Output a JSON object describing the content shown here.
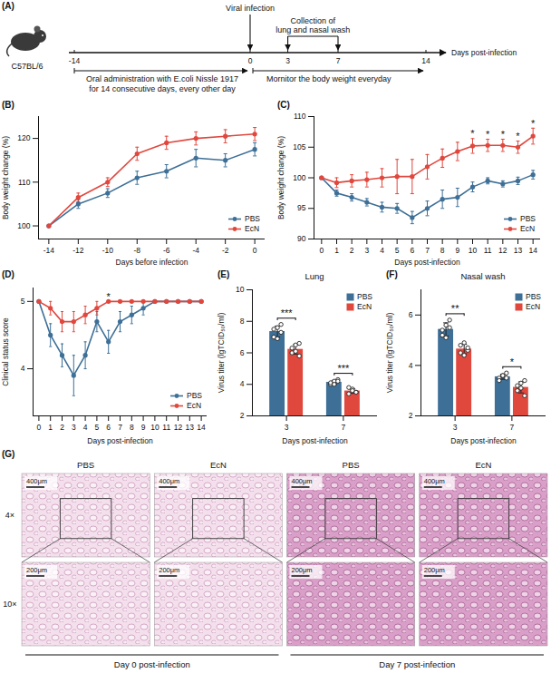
{
  "diagram": {
    "panel": "(A)",
    "strain": "C57BL/6",
    "axis_label": "Days post-infection",
    "ticks": [
      -14,
      0,
      3,
      7,
      14
    ],
    "events": [
      {
        "days": [
          0
        ],
        "label": [
          "Viral infection"
        ]
      },
      {
        "days": [
          3,
          7
        ],
        "label": [
          "Collection of",
          "lung and nasal wash"
        ]
      }
    ],
    "periods": [
      {
        "from": -14,
        "to": 0,
        "label": [
          "Oral administration with E.coli Nissle 1917",
          "for 14 consecutive days, every other day"
        ]
      },
      {
        "from": 0,
        "to": 14,
        "label": [
          "Mornitor the body weight everyday"
        ]
      }
    ]
  },
  "chart_data": [
    {
      "panel": "(B)",
      "type": "line",
      "x": [
        -14,
        -12,
        -10,
        -8,
        -6,
        -4,
        -2,
        0
      ],
      "series": [
        {
          "name": "PBS",
          "color": "#3d6f97",
          "values": [
            100,
            105,
            107.5,
            111,
            112.5,
            115.5,
            115,
            117.5
          ],
          "errors": [
            0,
            1,
            1,
            1.5,
            1.5,
            2,
            1.5,
            1.5
          ]
        },
        {
          "name": "EcN",
          "color": "#e0473d",
          "values": [
            100,
            106.5,
            110,
            116.5,
            119,
            120,
            120.5,
            121
          ],
          "errors": [
            0,
            1,
            1,
            1.5,
            1.5,
            1.5,
            1.5,
            1.5
          ]
        }
      ],
      "xlim": [
        -14.7,
        0.7
      ],
      "xticks": [
        -14,
        -12,
        -10,
        -8,
        -6,
        -4,
        -2,
        0
      ],
      "ylim": [
        97,
        125
      ],
      "yticks": [
        100,
        110,
        120
      ],
      "xlabel": "Days before infection",
      "ylabel": "Body weight change (%)",
      "marker": "circle",
      "legend": "bottom-right"
    },
    {
      "panel": "(C)",
      "type": "line",
      "x": [
        0,
        1,
        2,
        3,
        4,
        5,
        6,
        7,
        8,
        9,
        10,
        11,
        12,
        13,
        14
      ],
      "series": [
        {
          "name": "PBS",
          "color": "#3d6f97",
          "values": [
            100,
            97.5,
            96.8,
            96,
            95.2,
            95,
            93.5,
            95,
            96.5,
            96.8,
            98.5,
            99.5,
            99,
            99.5,
            100.5
          ],
          "errors": [
            0,
            0.5,
            0.6,
            0.6,
            0.8,
            0.8,
            1,
            1.2,
            1.5,
            1.5,
            0.8,
            0.5,
            0.5,
            0.6,
            0.7
          ]
        },
        {
          "name": "EcN",
          "color": "#e0473d",
          "values": [
            100,
            99.2,
            99.5,
            99.7,
            100,
            100.2,
            100.2,
            101.8,
            103.2,
            104.3,
            105.2,
            105.3,
            105.3,
            105,
            106.8
          ],
          "errors": [
            0,
            0.8,
            1,
            1.2,
            1.5,
            2.8,
            2.8,
            2,
            1.5,
            1.5,
            1.2,
            1,
            1,
            1,
            1.3
          ]
        }
      ],
      "xlim": [
        -0.5,
        14.5
      ],
      "xticks": [
        0,
        1,
        2,
        3,
        4,
        5,
        6,
        7,
        8,
        9,
        10,
        11,
        12,
        13,
        14
      ],
      "ylim": [
        90,
        110
      ],
      "yticks": [
        90,
        95,
        100,
        105,
        110
      ],
      "xlabel": "Days post-infection",
      "ylabel": "Body weight change (%)",
      "marker": "circle",
      "legend": "bottom-right",
      "annotations": [
        {
          "x": 10,
          "text": "*"
        },
        {
          "x": 11,
          "text": "*"
        },
        {
          "x": 12,
          "text": "*"
        },
        {
          "x": 13,
          "text": "*"
        },
        {
          "x": 14,
          "text": "*"
        }
      ]
    },
    {
      "panel": "(D)",
      "type": "line",
      "x": [
        0,
        1,
        2,
        3,
        4,
        5,
        6,
        7,
        8,
        9,
        10,
        11,
        12,
        13,
        14
      ],
      "series": [
        {
          "name": "PBS",
          "color": "#3d6f97",
          "values": [
            5,
            4.5,
            4.2,
            3.9,
            4.2,
            4.7,
            4.4,
            4.7,
            4.8,
            4.9,
            5,
            5,
            5,
            5,
            5
          ],
          "errors": [
            0,
            0.17,
            0.17,
            0.3,
            0.2,
            0.15,
            0.17,
            0.15,
            0.13,
            0.1,
            0,
            0,
            0,
            0,
            0
          ]
        },
        {
          "name": "EcN",
          "color": "#e0473d",
          "values": [
            5,
            4.9,
            4.7,
            4.7,
            4.8,
            4.9,
            5,
            5,
            5,
            5,
            5,
            5,
            5,
            5,
            5
          ],
          "errors": [
            0,
            0.1,
            0.15,
            0.15,
            0.13,
            0.1,
            0,
            0,
            0,
            0,
            0,
            0,
            0,
            0,
            0
          ]
        }
      ],
      "xlim": [
        -0.5,
        14.5
      ],
      "xticks": [
        0,
        1,
        2,
        3,
        4,
        5,
        6,
        7,
        8,
        9,
        10,
        11,
        12,
        13,
        14
      ],
      "ylim": [
        3.3,
        5.2
      ],
      "yticks": [
        4,
        5
      ],
      "xlabel": "Days post-infection",
      "ylabel": "Clinical status score",
      "marker": "circle",
      "legend": "bottom-right",
      "annotations": [
        {
          "x": 6,
          "text": "*"
        }
      ]
    },
    {
      "panel": "(E)",
      "type": "bar",
      "title": "Lung",
      "categories": [
        "3",
        "7"
      ],
      "series": [
        {
          "name": "PBS",
          "color": "#3d6f97",
          "values": [
            7.35,
            4.13
          ],
          "errors": [
            0.35,
            0.12
          ],
          "points": [
            [
              7.0,
              7.6,
              7.3,
              7.5,
              6.9,
              7.8
            ],
            [
              4.0,
              4.2,
              4.3,
              4.1,
              4.0,
              4.2
            ]
          ]
        },
        {
          "name": "EcN",
          "color": "#e0473d",
          "values": [
            6.22,
            3.58
          ],
          "errors": [
            0.3,
            0.15
          ],
          "points": [
            [
              6.0,
              6.5,
              5.8,
              6.3,
              6.1,
              6.6
            ],
            [
              3.4,
              3.7,
              3.5,
              3.8,
              3.6,
              3.5
            ]
          ]
        }
      ],
      "ylim": [
        2,
        10
      ],
      "yticks": [
        2,
        4,
        6,
        8,
        10
      ],
      "xlabel": "Days post-infection",
      "ylabel": "Virus titer (lgTCID₅₀/ml)",
      "legend": "top-right",
      "annotations": [
        {
          "category": "3",
          "text": "***"
        },
        {
          "category": "7",
          "text": "***"
        }
      ]
    },
    {
      "panel": "(F)",
      "type": "bar",
      "title": "Nasal wash",
      "categories": [
        "3",
        "7"
      ],
      "series": [
        {
          "name": "PBS",
          "color": "#3d6f97",
          "values": [
            5.43,
            3.55
          ],
          "errors": [
            0.26,
            0.1
          ],
          "points": [
            [
              5.2,
              5.6,
              5.8,
              5.4,
              5.1,
              5.5
            ],
            [
              3.5,
              3.6,
              3.7,
              3.4,
              3.6,
              3.5
            ]
          ]
        },
        {
          "name": "EcN",
          "color": "#e0473d",
          "values": [
            4.65,
            3.13
          ],
          "errors": [
            0.19,
            0.22
          ],
          "points": [
            [
              4.5,
              4.9,
              4.6,
              4.8,
              4.4,
              4.7
            ],
            [
              3.0,
              3.3,
              2.8,
              3.2,
              3.1,
              3.4
            ]
          ]
        }
      ],
      "ylim": [
        2,
        7
      ],
      "yticks": [
        2,
        4,
        6
      ],
      "xlabel": "Days post-infection",
      "ylabel": "Virus titer (lgTCID₅₀/ml)",
      "legend": "top-right",
      "annotations": [
        {
          "category": "3",
          "text": "**"
        },
        {
          "category": "7",
          "text": "*"
        }
      ]
    }
  ],
  "images": {
    "panel": "(G)",
    "rows": [
      "4×",
      "10×"
    ],
    "scale_bars": [
      "400μm",
      "200μm"
    ],
    "groups": [
      {
        "label": "Day 0 post-infection",
        "columns": [
          "PBS",
          "EcN"
        ]
      },
      {
        "label": "Day 7 post-infection",
        "columns": [
          "PBS",
          "EcN"
        ]
      }
    ]
  }
}
